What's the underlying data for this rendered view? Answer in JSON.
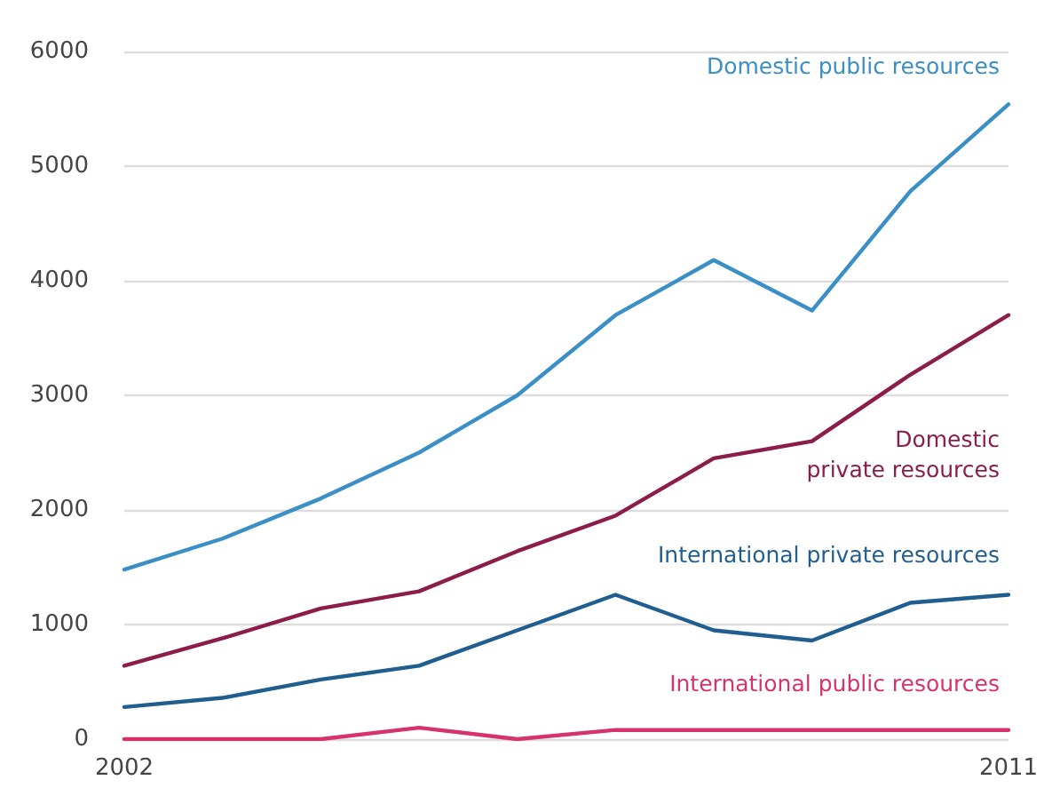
{
  "chart_data": {
    "type": "line",
    "x": [
      2002,
      2003,
      2004,
      2005,
      2006,
      2007,
      2008,
      2009,
      2010,
      2011
    ],
    "xlim": [
      2002,
      2011
    ],
    "xticks": [
      2002,
      2011
    ],
    "ylim": [
      0,
      6000
    ],
    "yticks": [
      0,
      1000,
      2000,
      3000,
      4000,
      5000,
      6000
    ],
    "grid": "y",
    "legend": false,
    "marker": "none",
    "line_style": "solid",
    "series": [
      {
        "name": "Domestic public resources",
        "color": "#3a8fc6",
        "values": [
          1480,
          1750,
          2100,
          2500,
          3000,
          3700,
          4180,
          3740,
          4780,
          5540
        ]
      },
      {
        "name": "Domestic\nprivate resources",
        "color": "#8c1d4b",
        "values": [
          640,
          880,
          1140,
          1290,
          1640,
          1950,
          2450,
          2600,
          3180,
          3700
        ]
      },
      {
        "name": "International private resources",
        "color": "#1f5e8e",
        "values": [
          280,
          360,
          520,
          640,
          950,
          1260,
          950,
          860,
          1190,
          1260
        ]
      },
      {
        "name": "International public resources",
        "color": "#d6336c",
        "values": [
          0,
          0,
          0,
          100,
          0,
          80,
          80,
          80,
          80,
          80
        ]
      }
    ]
  }
}
